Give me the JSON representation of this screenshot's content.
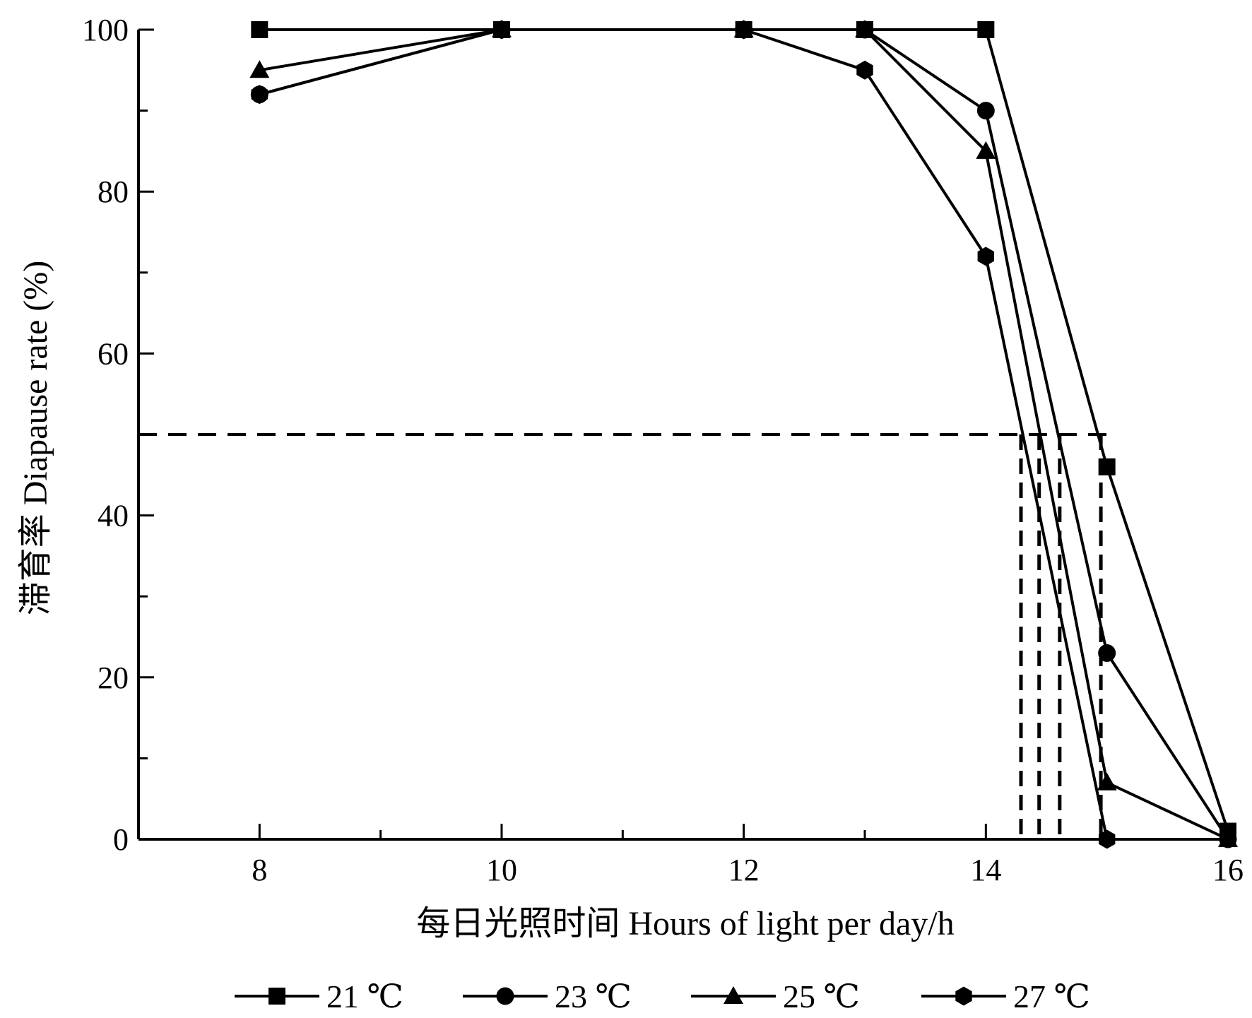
{
  "chart_data": {
    "type": "line",
    "title": "",
    "xlabel": "每日光照时间  Hours of light per day/h",
    "ylabel": "滞育率  Diapause rate (%)",
    "xlim": [
      7,
      16
    ],
    "ylim": [
      0,
      100
    ],
    "x_ticks": [
      8,
      10,
      12,
      14,
      16
    ],
    "y_ticks": [
      0,
      20,
      40,
      60,
      80,
      100
    ],
    "x_tick_labels": [
      "8",
      "10",
      "12",
      "14",
      "16"
    ],
    "y_tick_labels": [
      "0",
      "20",
      "40",
      "60",
      "80",
      "100"
    ],
    "grid": false,
    "legend_position": "bottom",
    "reference_line_y": 50,
    "critical_photoperiods": [
      14.29,
      14.44,
      14.61,
      14.95
    ],
    "series": [
      {
        "name": "21 ℃",
        "marker": "square",
        "x": [
          8,
          10,
          12,
          13,
          14,
          15,
          16
        ],
        "y": [
          100,
          100,
          100,
          100,
          100,
          46,
          1
        ]
      },
      {
        "name": "23 ℃",
        "marker": "circle",
        "x": [
          8,
          10,
          12,
          13,
          14,
          15,
          16
        ],
        "y": [
          92,
          100,
          100,
          100,
          90,
          23,
          0
        ]
      },
      {
        "name": "25 ℃",
        "marker": "triangle",
        "x": [
          8,
          10,
          12,
          13,
          14,
          15,
          16
        ],
        "y": [
          95,
          100,
          100,
          100,
          85,
          7,
          0
        ]
      },
      {
        "name": "27 ℃",
        "marker": "hexagon",
        "x": [
          8,
          10,
          12,
          13,
          14,
          15
        ],
        "y": [
          92,
          100,
          100,
          95,
          72,
          0
        ]
      }
    ],
    "colors": {
      "line": "#000000"
    }
  }
}
